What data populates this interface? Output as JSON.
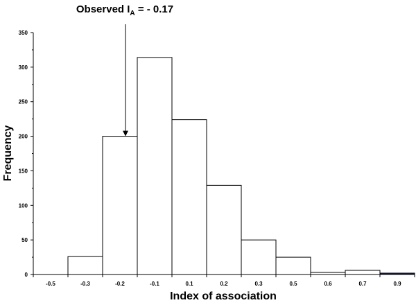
{
  "chart_data": {
    "type": "bar",
    "title": "Observed I",
    "title_subscript": "A",
    "title_suffix": " = - 0.17",
    "xlabel": "Index of association",
    "ylabel": "Frequency",
    "categories": [
      "-0.5",
      "-0.3",
      "-0.2",
      "-0.1",
      "0.1",
      "0.2",
      "0.3",
      "0.5",
      "0.6",
      "0.7",
      "0.9"
    ],
    "values": [
      0,
      26,
      200,
      314,
      224,
      129,
      50,
      25,
      3,
      6,
      2
    ],
    "ylim": [
      0,
      350
    ],
    "yticks": [
      0,
      50,
      100,
      150,
      200,
      250,
      300,
      350
    ],
    "observed_value_category": "-0.2",
    "bar_color": "#ffffff",
    "last_bar_color": "#2a2a5a",
    "grid": false
  }
}
